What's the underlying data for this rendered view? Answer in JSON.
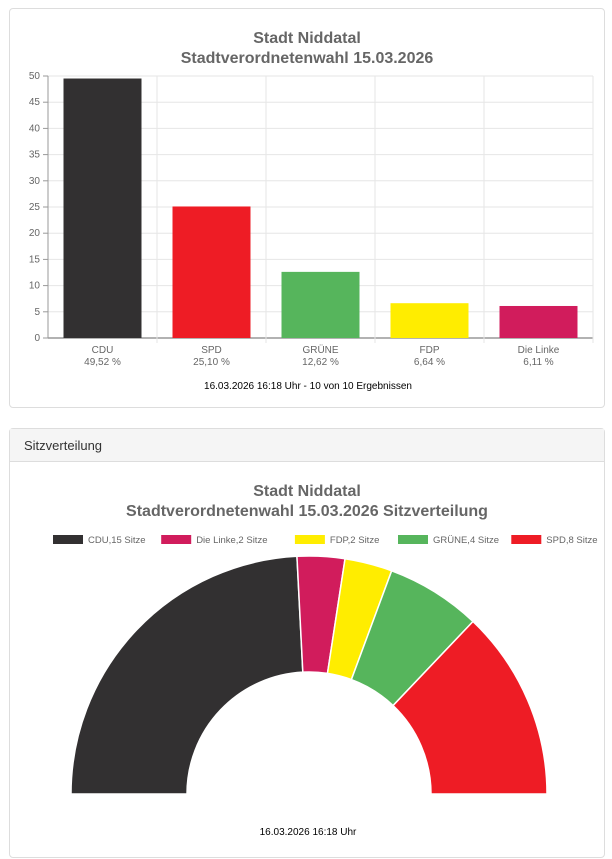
{
  "bar_panel": {
    "title_line1": "Stadt Niddatal",
    "title_line2": "Stadtverordnetenwahl 15.03.2026",
    "footer": "16.03.2026 16:18 Uhr - 10 von 10 Ergebnissen"
  },
  "seat_panel": {
    "header": "Sitzverteilung",
    "title_line1": "Stadt Niddatal",
    "title_line2": "Stadtverordnetenwahl 15.03.2026 Sitzverteilung",
    "footer": "16.03.2026 16:18 Uhr"
  },
  "chart_data": [
    {
      "type": "bar",
      "title": "Stadt Niddatal Stadtverordnetenwahl 15.03.2026",
      "categories": [
        "CDU",
        "SPD",
        "GRÜNE",
        "FDP",
        "Die Linke"
      ],
      "value_labels": [
        "49,52 %",
        "25,10 %",
        "12,62 %",
        "6,64 %",
        "6,11 %"
      ],
      "values": [
        49.52,
        25.1,
        12.62,
        6.64,
        6.11
      ],
      "colors": [
        "#323031",
        "#ee1c25",
        "#56b55c",
        "#ffed00",
        "#d11c5c"
      ],
      "ylim": [
        0,
        50
      ],
      "yticks": [
        0,
        5,
        10,
        15,
        20,
        25,
        30,
        35,
        40,
        45,
        50
      ],
      "grid": true
    },
    {
      "type": "pie",
      "variant": "half-donut",
      "title": "Stadt Niddatal Stadtverordnetenwahl 15.03.2026 Sitzverteilung",
      "legend_position": "top",
      "categories": [
        "CDU",
        "Die Linke",
        "FDP",
        "GRÜNE",
        "SPD"
      ],
      "legend_labels": [
        "CDU,15 Sitze",
        "Die Linke,2 Sitze",
        "FDP,2 Sitze",
        "GRÜNE,4 Sitze",
        "SPD,8 Sitze"
      ],
      "values": [
        15,
        2,
        2,
        4,
        8
      ],
      "colors": [
        "#323031",
        "#d11c5c",
        "#ffed00",
        "#56b55c",
        "#ee1c25"
      ]
    }
  ]
}
